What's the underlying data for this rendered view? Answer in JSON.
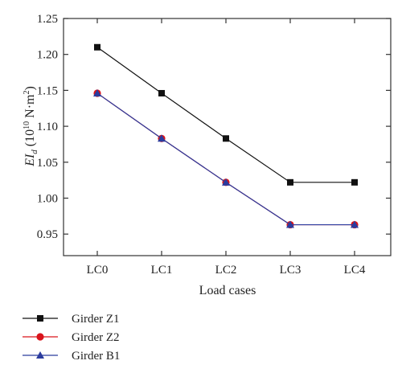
{
  "chart_data": {
    "type": "line",
    "title": "",
    "xlabel": "Load cases",
    "ylabel": {
      "main": "EI",
      "sub": "d",
      "unit_open": " (10",
      "unit_exp": "10",
      "unit_close": " N·m",
      "unit_exp2": "2",
      "unit_end": ")"
    },
    "categories": [
      "LC0",
      "LC1",
      "LC2",
      "LC3",
      "LC4"
    ],
    "ylim": [
      0.92,
      1.25
    ],
    "yticks": [
      0.95,
      1.0,
      1.05,
      1.1,
      1.15,
      1.2,
      1.25
    ],
    "ytick_labels": [
      "0.95",
      "1.00",
      "1.05",
      "1.10",
      "1.15",
      "1.20",
      "1.25"
    ],
    "grid": false,
    "legend_position": "bottom-left, below plot",
    "series": [
      {
        "name": "Girder Z1",
        "values": [
          1.21,
          1.146,
          1.083,
          1.022,
          1.022
        ],
        "color": "#111111",
        "marker": "square"
      },
      {
        "name": "Girder Z2",
        "values": [
          1.146,
          1.083,
          1.022,
          0.963,
          0.963
        ],
        "color": "#d9141b",
        "marker": "circle"
      },
      {
        "name": "Girder B1",
        "values": [
          1.146,
          1.083,
          1.022,
          0.963,
          0.963
        ],
        "color": "#2b3c9e",
        "marker": "triangle"
      }
    ]
  }
}
